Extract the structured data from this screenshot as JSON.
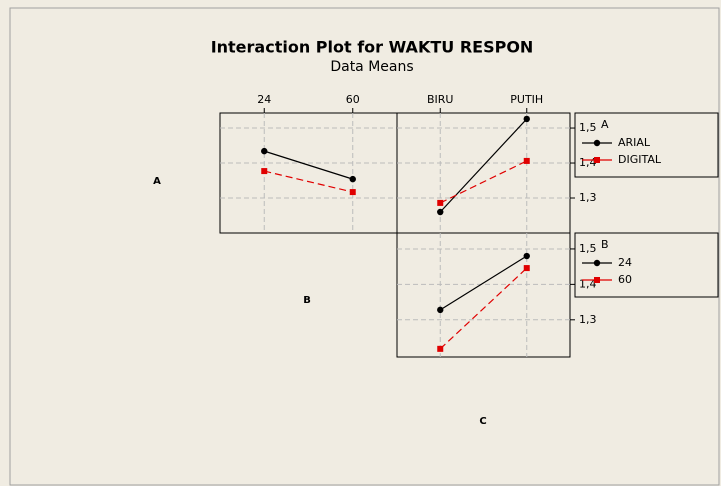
{
  "title": "Interaction Plot for WAKTU RESPON",
  "subtitle": "Data Means",
  "factors": [
    "A",
    "B",
    "C"
  ],
  "chart_data": [
    {
      "type": "line",
      "categories": [
        "24",
        "60"
      ],
      "ylim": [
        1.2,
        1.543
      ],
      "yticks": [
        {
          "value": 1.3,
          "label": "1,3"
        },
        {
          "value": 1.4,
          "label": "1,4"
        },
        {
          "value": 1.5,
          "label": "1,5"
        }
      ],
      "grid": true,
      "yaxis": "none",
      "series": [
        {
          "color": "#000000",
          "marker": "circle",
          "linestyle": "solid",
          "values": [
            1.434,
            1.354
          ]
        },
        {
          "color": "#e00000",
          "marker": "square",
          "linestyle": "dashed",
          "values": [
            1.377,
            1.317
          ]
        }
      ]
    },
    {
      "type": "line",
      "categories": [
        "BIRU",
        "PUTIH"
      ],
      "ylim": [
        1.2,
        1.543
      ],
      "yticks": [
        {
          "value": 1.3,
          "label": "1,3"
        },
        {
          "value": 1.4,
          "label": "1,4"
        },
        {
          "value": 1.5,
          "label": "1,5"
        }
      ],
      "grid": true,
      "yaxis": "right",
      "legend_title": "A",
      "series": [
        {
          "name": "ARIAL",
          "color": "#000000",
          "marker": "circle",
          "linestyle": "solid",
          "values": [
            1.26,
            1.526
          ]
        },
        {
          "name": "DIGITAL",
          "color": "#e00000",
          "marker": "square",
          "linestyle": "dashed",
          "values": [
            1.286,
            1.406
          ]
        }
      ]
    },
    {
      "type": "line",
      "categories": [
        null,
        null
      ],
      "ylim": [
        1.195,
        1.545
      ],
      "yticks": [
        {
          "value": 1.3,
          "label": "1,3"
        },
        {
          "value": 1.4,
          "label": "1,4"
        },
        {
          "value": 1.5,
          "label": "1,5"
        }
      ],
      "grid": true,
      "yaxis": "right",
      "legend_title": "B",
      "series": [
        {
          "name": "24",
          "color": "#000000",
          "marker": "circle",
          "linestyle": "solid",
          "values": [
            1.328,
            1.48
          ]
        },
        {
          "name": "60",
          "color": "#e00000",
          "marker": "square",
          "linestyle": "dashed",
          "values": [
            1.218,
            1.446
          ]
        }
      ]
    }
  ]
}
